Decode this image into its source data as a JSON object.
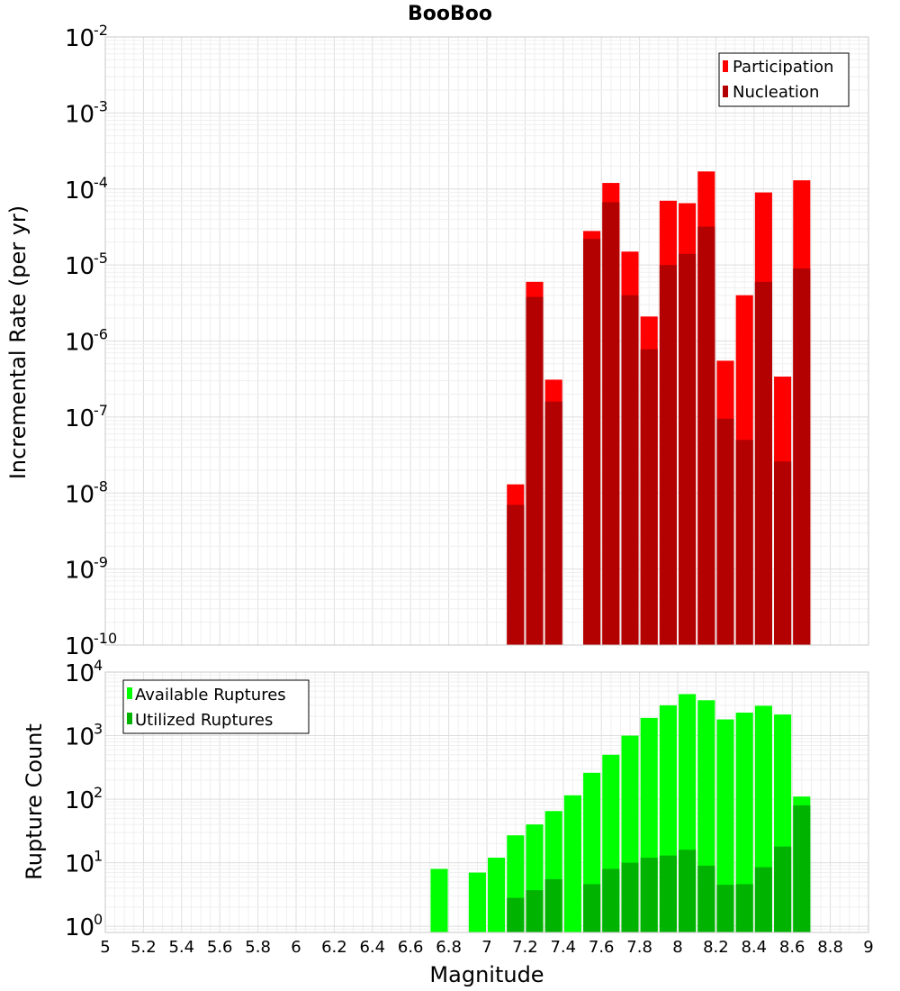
{
  "title": "BooBoo",
  "x_axis": {
    "label": "Magnitude",
    "range": [
      5,
      9
    ],
    "tick_labels": [
      "5",
      "5.2",
      "5.4",
      "5.6",
      "5.8",
      "6",
      "6.2",
      "6.4",
      "6.6",
      "6.8",
      "7",
      "7.2",
      "7.4",
      "7.6",
      "7.8",
      "8",
      "8.2",
      "8.4",
      "8.6",
      "8.8",
      "9"
    ]
  },
  "chart_data": [
    {
      "type": "bar",
      "ylabel": "Incremental Rate (per yr)",
      "yscale": "log",
      "ylim": [
        1e-10,
        0.01
      ],
      "y_tick_exponents": [
        "-10",
        "-9",
        "-8",
        "-7",
        "-6",
        "-5",
        "-4",
        "-3",
        "-2"
      ],
      "legend_position": "top-right",
      "grid": true,
      "bar_width": 0.09,
      "x": [
        7.15,
        7.25,
        7.35,
        7.45,
        7.55,
        7.65,
        7.75,
        7.85,
        7.95,
        8.05,
        8.15,
        8.25,
        8.35,
        8.45,
        8.55,
        8.65
      ],
      "series": [
        {
          "name": "Participation",
          "color": "#ff0000",
          "values": [
            1.3e-08,
            6e-06,
            3.1e-07,
            null,
            2.8e-05,
            0.00012,
            1.5e-05,
            2.1e-06,
            7e-05,
            6.5e-05,
            0.00017,
            5.5e-07,
            4e-06,
            9e-05,
            3.4e-07,
            0.00013
          ]
        },
        {
          "name": "Nucleation",
          "color": "#b30000",
          "values": [
            7e-09,
            3.8e-06,
            1.6e-07,
            null,
            2.2e-05,
            6.7e-05,
            4e-06,
            7.8e-07,
            1e-05,
            1.4e-05,
            3.2e-05,
            9.5e-08,
            5e-08,
            6e-06,
            2.6e-08,
            9e-06
          ]
        }
      ]
    },
    {
      "type": "bar",
      "ylabel": "Rupture Count",
      "yscale": "log",
      "ylim": [
        0.8,
        10000
      ],
      "y_tick_exponents": [
        "0",
        "1",
        "2",
        "3",
        "4"
      ],
      "legend_position": "top-left",
      "grid": true,
      "bar_width": 0.09,
      "x": [
        6.75,
        6.85,
        6.95,
        7.05,
        7.15,
        7.25,
        7.35,
        7.45,
        7.55,
        7.65,
        7.75,
        7.85,
        7.95,
        8.05,
        8.15,
        8.25,
        8.35,
        8.45,
        8.55,
        8.65
      ],
      "series": [
        {
          "name": "Available Ruptures",
          "color": "#00ff00",
          "values": [
            8,
            null,
            7,
            12,
            27,
            40,
            65,
            115,
            260,
            500,
            1000,
            1900,
            3000,
            4500,
            3600,
            1800,
            2300,
            2950,
            2150,
            110
          ]
        },
        {
          "name": "Utilized Ruptures",
          "color": "#00b300",
          "values": [
            null,
            null,
            null,
            null,
            2.8,
            3.7,
            5.5,
            null,
            4.6,
            8,
            10,
            12,
            13,
            16,
            9,
            4.5,
            4.6,
            8.5,
            18,
            80
          ]
        }
      ]
    }
  ]
}
